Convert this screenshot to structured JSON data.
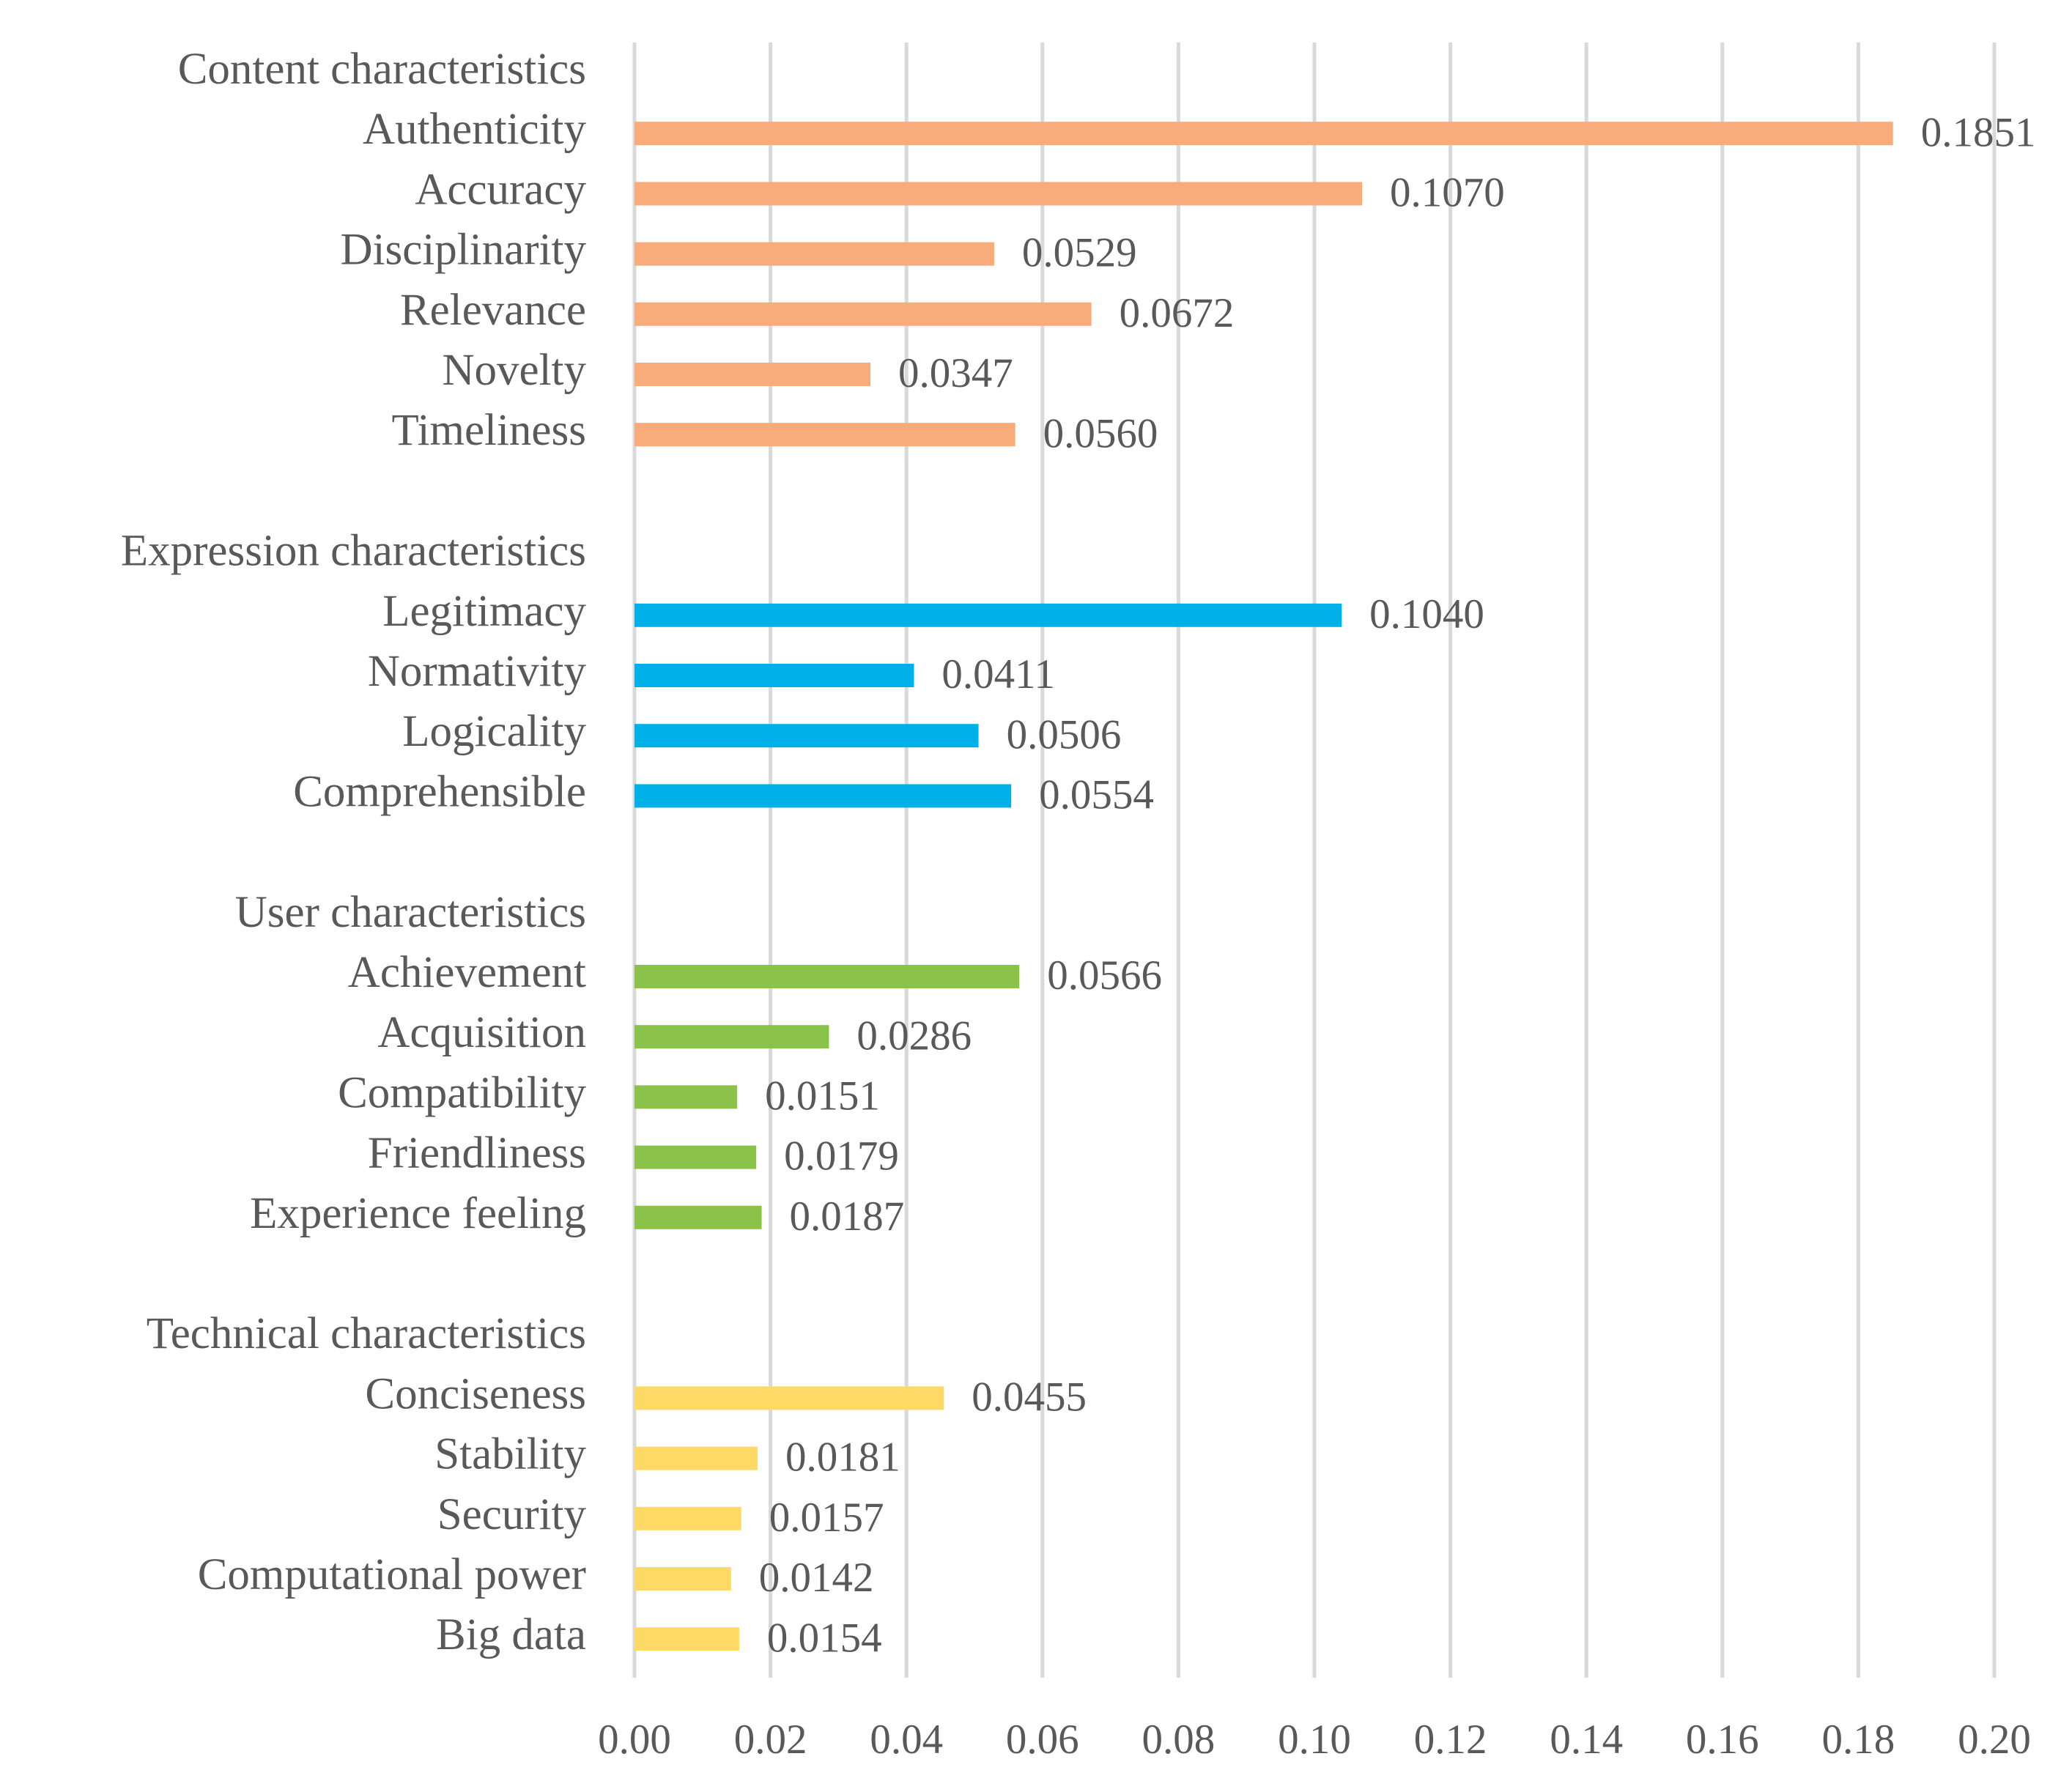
{
  "chart_data": {
    "type": "bar",
    "orientation": "horizontal",
    "title": "",
    "xlabel": "",
    "ylabel": "",
    "xlim": [
      0,
      0.2
    ],
    "x_ticks": [
      "0.00",
      "0.02",
      "0.04",
      "0.06",
      "0.08",
      "0.10",
      "0.12",
      "0.14",
      "0.16",
      "0.18",
      "0.20"
    ],
    "grid": "vertical",
    "legend": "none",
    "groups": [
      {
        "label": "Content characteristics",
        "color": "#F8AC7C",
        "items": [
          {
            "label": "Authenticity",
            "value": 0.1851,
            "value_label": "0.1851"
          },
          {
            "label": "Accuracy",
            "value": 0.107,
            "value_label": "0.1070"
          },
          {
            "label": "Disciplinarity",
            "value": 0.0529,
            "value_label": "0.0529"
          },
          {
            "label": "Relevance",
            "value": 0.0672,
            "value_label": "0.0672"
          },
          {
            "label": "Novelty",
            "value": 0.0347,
            "value_label": "0.0347"
          },
          {
            "label": "Timeliness",
            "value": 0.056,
            "value_label": "0.0560"
          }
        ]
      },
      {
        "label": "Expression characteristics",
        "color": "#00B0E8",
        "items": [
          {
            "label": "Legitimacy",
            "value": 0.104,
            "value_label": "0.1040"
          },
          {
            "label": "Normativity",
            "value": 0.0411,
            "value_label": "0.0411"
          },
          {
            "label": "Logicality",
            "value": 0.0506,
            "value_label": "0.0506"
          },
          {
            "label": "Comprehensible",
            "value": 0.0554,
            "value_label": "0.0554"
          }
        ]
      },
      {
        "label": "User characteristics",
        "color": "#8BC34A",
        "items": [
          {
            "label": "Achievement",
            "value": 0.0566,
            "value_label": "0.0566"
          },
          {
            "label": "Acquisition",
            "value": 0.0286,
            "value_label": "0.0286"
          },
          {
            "label": "Compatibility",
            "value": 0.0151,
            "value_label": "0.0151"
          },
          {
            "label": "Friendliness",
            "value": 0.0179,
            "value_label": "0.0179"
          },
          {
            "label": "Experience feeling",
            "value": 0.0187,
            "value_label": "0.0187"
          }
        ]
      },
      {
        "label": "Technical characteristics",
        "color": "#FFD966",
        "items": [
          {
            "label": "Conciseness",
            "value": 0.0455,
            "value_label": "0.0455"
          },
          {
            "label": "Stability",
            "value": 0.0181,
            "value_label": "0.0181"
          },
          {
            "label": "Security",
            "value": 0.0157,
            "value_label": "0.0157"
          },
          {
            "label": "Computational power",
            "value": 0.0142,
            "value_label": "0.0142"
          },
          {
            "label": "Big data",
            "value": 0.0154,
            "value_label": "0.0154"
          }
        ]
      }
    ],
    "colors": {
      "text": "#595959",
      "grid": "#D9D9D9"
    }
  }
}
